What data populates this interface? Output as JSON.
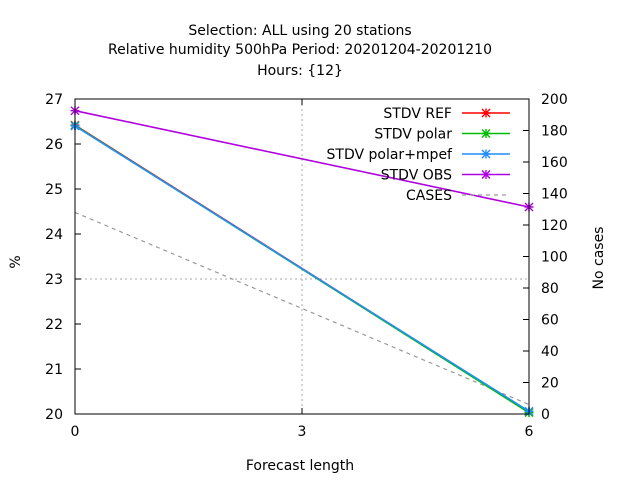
{
  "chart_data": {
    "type": "line",
    "title": "Selection: ALL using    20 stations",
    "subtitle": "Relative humidity 500hPa   Period: 20201204-20201210",
    "subtitle2": "Hours: {12}",
    "xlabel": "Forecast length",
    "ylabel": "%",
    "y2label": "No cases",
    "x": [
      0,
      3,
      6
    ],
    "xticks": [
      "0",
      "3",
      "6"
    ],
    "xlim": [
      0,
      6
    ],
    "ylim": [
      20,
      27
    ],
    "y2lim": [
      0,
      200
    ],
    "yticks": [
      "20",
      "21",
      "22",
      "23",
      "24",
      "25",
      "26",
      "27"
    ],
    "y2ticks": [
      "0",
      "20",
      "40",
      "60",
      "80",
      "100",
      "120",
      "140",
      "160",
      "180",
      "200"
    ],
    "grid": true,
    "legend_position": "top-right",
    "series": [
      {
        "name": "STDV REF",
        "axis": "y",
        "x": [
          0,
          6
        ],
        "values": [
          26.42,
          20.05
        ],
        "color": "#ff0000"
      },
      {
        "name": "STDV polar",
        "axis": "y",
        "x": [
          0,
          6
        ],
        "values": [
          26.41,
          20.03
        ],
        "color": "#00bb00"
      },
      {
        "name": "STDV polar+mpef",
        "axis": "y",
        "x": [
          0,
          6
        ],
        "values": [
          26.4,
          20.06
        ],
        "color": "#1f8fff"
      },
      {
        "name": "STDV OBS",
        "axis": "y",
        "x": [
          0,
          6
        ],
        "values": [
          26.74,
          24.6
        ],
        "color": "#b000e0"
      },
      {
        "name": "CASES",
        "axis": "y2",
        "x": [
          0,
          6
        ],
        "values": [
          128,
          6
        ],
        "color": "#999999",
        "dashed": true
      }
    ]
  }
}
